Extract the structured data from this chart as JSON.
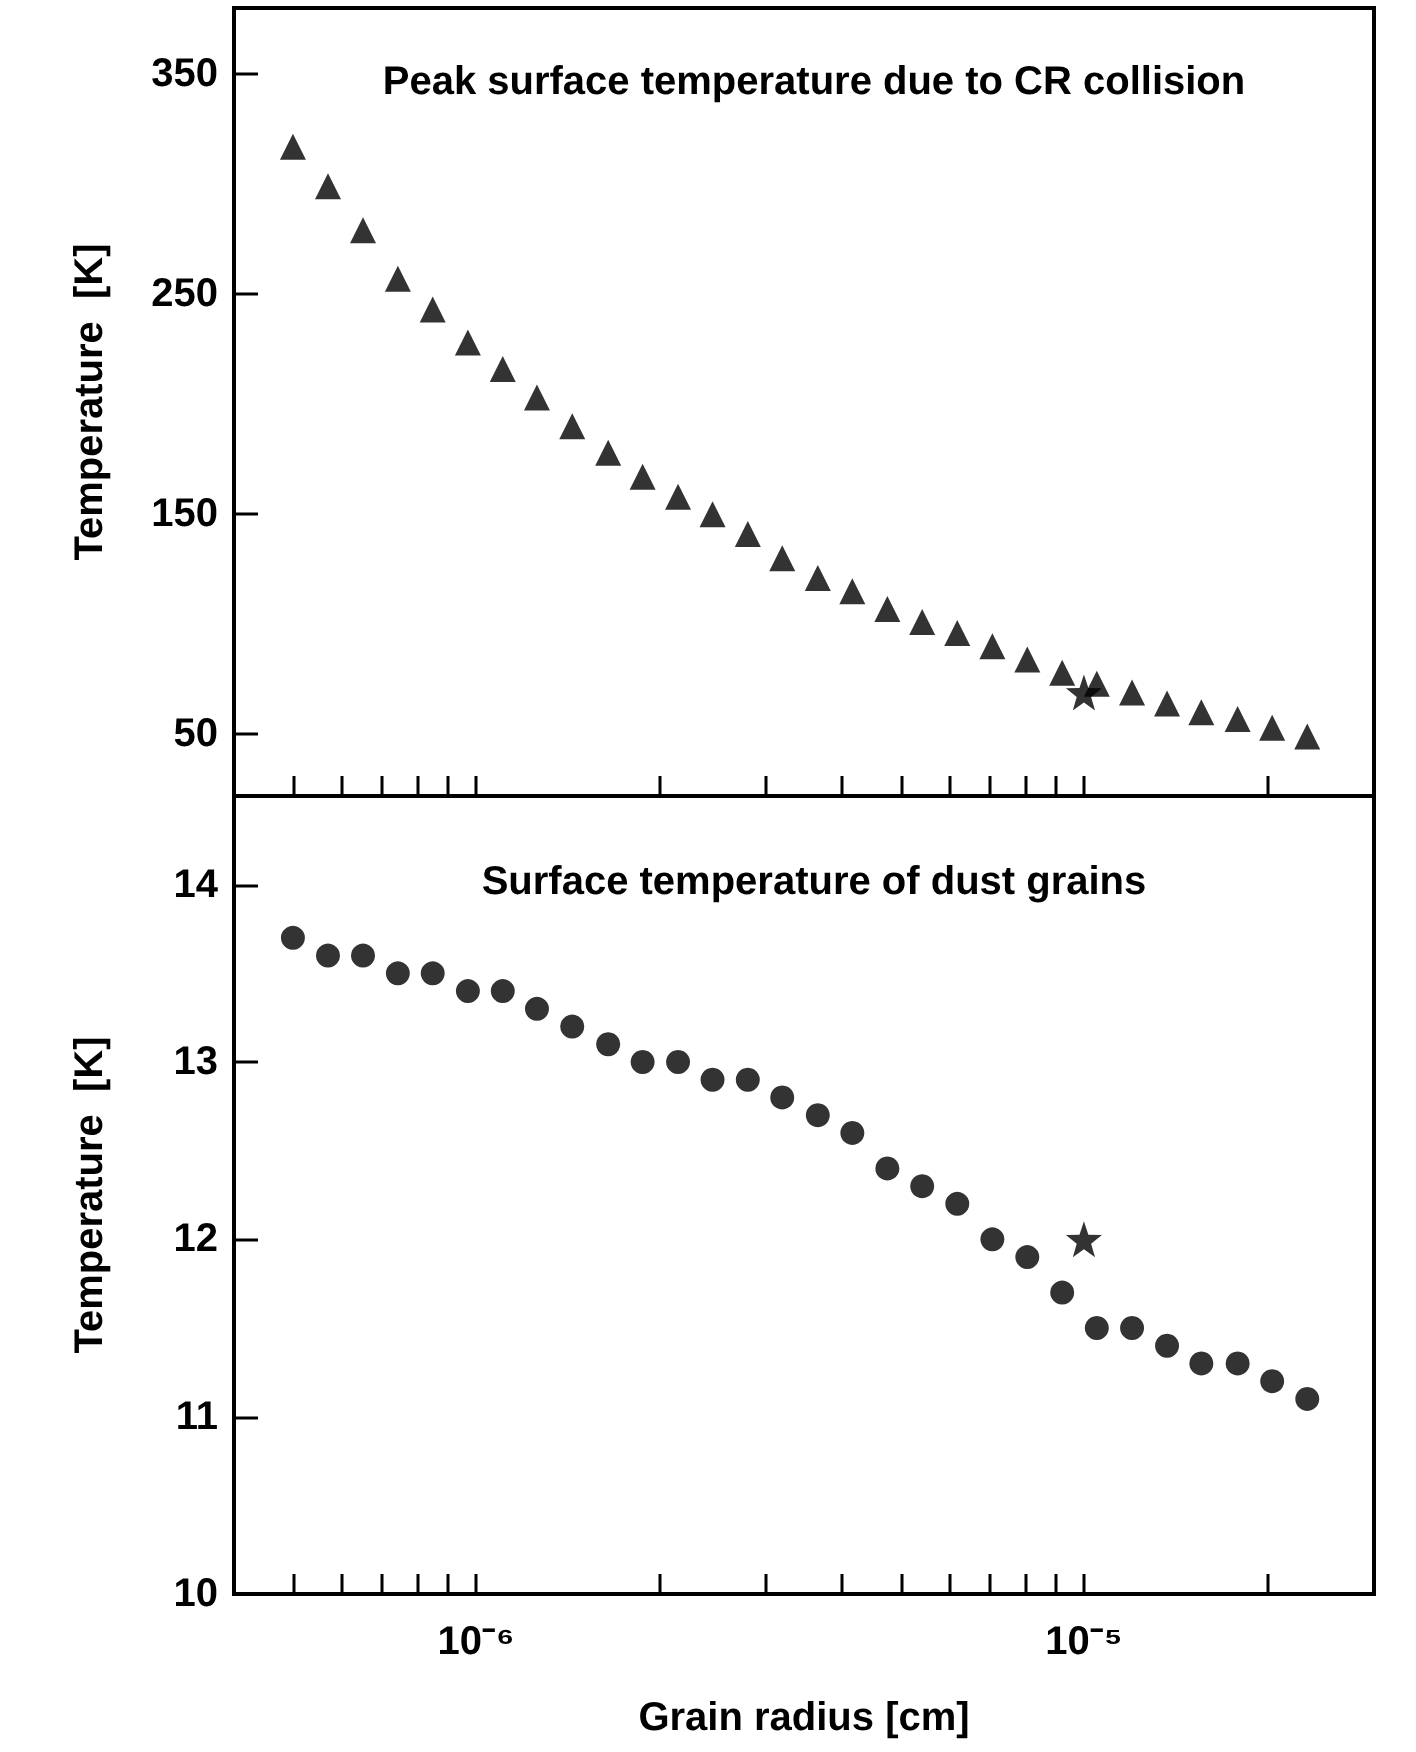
{
  "chart_data": [
    {
      "type": "scatter",
      "title": "Peak surface temperature due to CR collision",
      "ylabel": "Temperature  [K]",
      "log": "x",
      "tick_labels": "y",
      "xlim": [
        4e-07,
        3e-05
      ],
      "ylim": [
        22,
        380
      ],
      "xticks": [
        {
          "value": 5e-07,
          "label": null
        },
        {
          "value": 6e-07,
          "label": null
        },
        {
          "value": 7e-07,
          "label": null
        },
        {
          "value": 8e-07,
          "label": null
        },
        {
          "value": 9e-07,
          "label": null
        },
        {
          "value": 1e-06,
          "label": null
        },
        {
          "value": 2e-06,
          "label": null
        },
        {
          "value": 3e-06,
          "label": null
        },
        {
          "value": 4e-06,
          "label": null
        },
        {
          "value": 5e-06,
          "label": null
        },
        {
          "value": 6e-06,
          "label": null
        },
        {
          "value": 7e-06,
          "label": null
        },
        {
          "value": 8e-06,
          "label": null
        },
        {
          "value": 9e-06,
          "label": null
        },
        {
          "value": 1e-05,
          "label": null
        },
        {
          "value": 2e-05,
          "label": null
        }
      ],
      "yticks": [
        50,
        150,
        250,
        350
      ],
      "grid": false,
      "series": [
        {
          "type": "scatter",
          "marker": "triangle",
          "color": "#000000",
          "x": [
            5e-07,
            5.71e-07,
            6.52e-07,
            7.44e-07,
            8.49e-07,
            9.7e-07,
            1.107e-06,
            1.26e-06,
            1.44e-06,
            1.65e-06,
            1.88e-06,
            2.15e-06,
            2.45e-06,
            2.8e-06,
            3.19e-06,
            3.65e-06,
            4.16e-06,
            4.75e-06,
            5.42e-06,
            6.19e-06,
            7.07e-06,
            8.07e-06,
            9.21e-06,
            1.05e-05,
            1.2e-05,
            1.37e-05,
            1.56e-05,
            1.79e-05,
            2.04e-05,
            2.33e-05
          ],
          "values": [
            317,
            299,
            279,
            257,
            243,
            228,
            216,
            203,
            190,
            178,
            167,
            158,
            150,
            141,
            130,
            121,
            115,
            107,
            101,
            96,
            90,
            84,
            78,
            73,
            69,
            64,
            60,
            57,
            53,
            49
          ]
        },
        {
          "type": "scatter",
          "marker": "star",
          "color": "#000000",
          "x": [
            1e-05
          ],
          "values": [
            69
          ]
        }
      ]
    },
    {
      "type": "scatter",
      "title": "Surface temperature of dust grains",
      "xlabel": "Grain radius [cm]",
      "ylabel": "Temperature  [K]",
      "log": "x",
      "xlim": [
        4e-07,
        3e-05
      ],
      "ylim": [
        10,
        14.5
      ],
      "xticks": [
        {
          "value": 5e-07,
          "label": null
        },
        {
          "value": 6e-07,
          "label": null
        },
        {
          "value": 7e-07,
          "label": null
        },
        {
          "value": 8e-07,
          "label": null
        },
        {
          "value": 9e-07,
          "label": null
        },
        {
          "value": 1e-06,
          "label": "10⁻⁶"
        },
        {
          "value": 2e-06,
          "label": null
        },
        {
          "value": 3e-06,
          "label": null
        },
        {
          "value": 4e-06,
          "label": null
        },
        {
          "value": 5e-06,
          "label": null
        },
        {
          "value": 6e-06,
          "label": null
        },
        {
          "value": 7e-06,
          "label": null
        },
        {
          "value": 8e-06,
          "label": null
        },
        {
          "value": 9e-06,
          "label": null
        },
        {
          "value": 1e-05,
          "label": "10⁻⁵"
        },
        {
          "value": 2e-05,
          "label": null
        }
      ],
      "yticks": [
        10,
        11,
        12,
        13,
        14
      ],
      "grid": false,
      "series": [
        {
          "type": "scatter",
          "marker": "circle",
          "color": "#000000",
          "x": [
            5e-07,
            5.71e-07,
            6.52e-07,
            7.44e-07,
            8.49e-07,
            9.7e-07,
            1.107e-06,
            1.26e-06,
            1.44e-06,
            1.65e-06,
            1.88e-06,
            2.15e-06,
            2.45e-06,
            2.8e-06,
            3.19e-06,
            3.65e-06,
            4.16e-06,
            4.75e-06,
            5.42e-06,
            6.19e-06,
            7.07e-06,
            8.07e-06,
            9.21e-06,
            1.05e-05,
            1.2e-05,
            1.37e-05,
            1.56e-05,
            1.79e-05,
            2.04e-05,
            2.33e-05
          ],
          "values": [
            13.7,
            13.6,
            13.6,
            13.5,
            13.5,
            13.4,
            13.4,
            13.3,
            13.2,
            13.1,
            13.0,
            13.0,
            12.9,
            12.9,
            12.8,
            12.7,
            12.6,
            12.4,
            12.3,
            12.2,
            12.0,
            11.9,
            11.7,
            11.5,
            11.5,
            11.4,
            11.3,
            11.3,
            11.2,
            11.1
          ]
        },
        {
          "type": "scatter",
          "marker": "star",
          "color": "#000000",
          "x": [
            1e-05
          ],
          "values": [
            12.0
          ]
        }
      ]
    }
  ]
}
